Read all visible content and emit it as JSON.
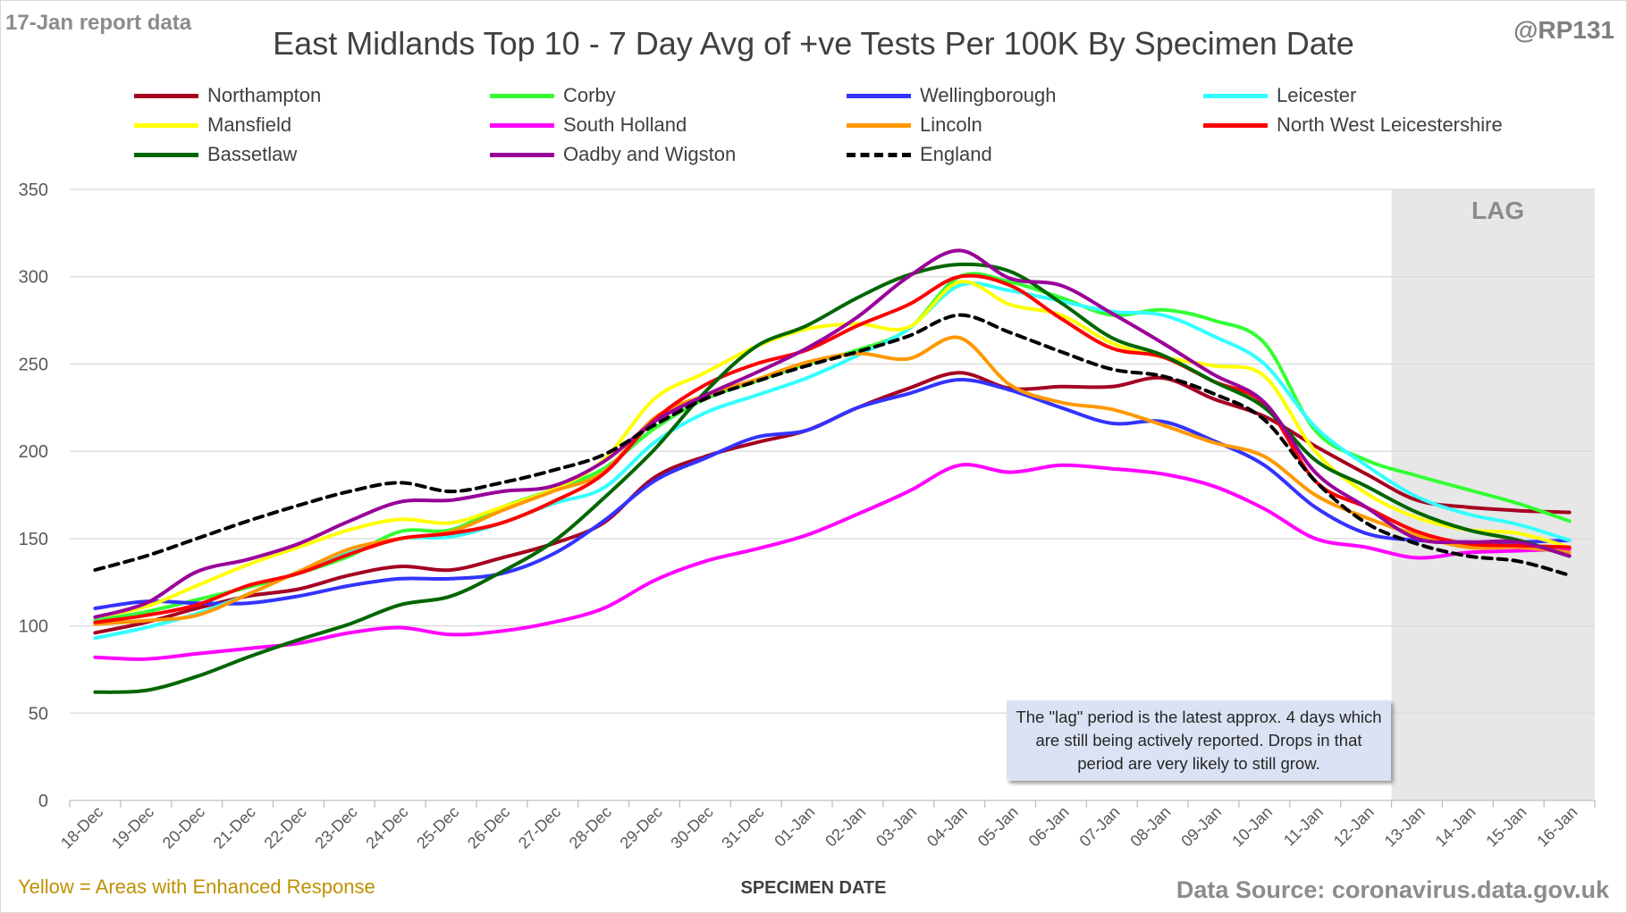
{
  "header": {
    "report_label": "17-Jan report data",
    "handle": "@RP131",
    "title": "East Midlands Top 10 - 7 Day Avg of +ve Tests Per 100K By Specimen Date"
  },
  "footer": {
    "enhanced_note": "Yellow = Areas with Enhanced Response",
    "source": "Data Source: coronavirus.data.gov.uk"
  },
  "lag": {
    "label": "LAG",
    "start_category": "13-Jan",
    "note": "The \"lag\" period is the latest approx. 4 days which are still being actively reported. Drops in that period are very likely to still grow."
  },
  "chart_data": {
    "type": "line",
    "title": "East Midlands Top 10 - 7 Day Avg of +ve Tests Per 100K By Specimen Date",
    "xlabel": "SPECIMEN DATE",
    "ylabel": "",
    "ylim": [
      0,
      350
    ],
    "yticks": [
      0,
      50,
      100,
      150,
      200,
      250,
      300,
      350
    ],
    "grid": true,
    "legend_position": "top",
    "categories": [
      "18-Dec",
      "19-Dec",
      "20-Dec",
      "21-Dec",
      "22-Dec",
      "23-Dec",
      "24-Dec",
      "25-Dec",
      "26-Dec",
      "27-Dec",
      "28-Dec",
      "29-Dec",
      "30-Dec",
      "31-Dec",
      "01-Jan",
      "02-Jan",
      "03-Jan",
      "04-Jan",
      "05-Jan",
      "06-Jan",
      "07-Jan",
      "08-Jan",
      "09-Jan",
      "10-Jan",
      "11-Jan",
      "12-Jan",
      "13-Jan",
      "14-Jan",
      "15-Jan",
      "16-Jan"
    ],
    "series": [
      {
        "name": "Northampton",
        "color": "#a50021",
        "dashed": false,
        "values": [
          96,
          102,
          110,
          117,
          121,
          129,
          134,
          132,
          139,
          147,
          159,
          185,
          197,
          205,
          212,
          225,
          236,
          245,
          236,
          237,
          237,
          242,
          230,
          220,
          203,
          187,
          172,
          168,
          166,
          165
        ]
      },
      {
        "name": "Corby",
        "color": "#33ff33",
        "dashed": false,
        "values": [
          103,
          108,
          115,
          122,
          130,
          140,
          154,
          155,
          168,
          178,
          190,
          213,
          230,
          240,
          250,
          258,
          270,
          300,
          297,
          288,
          278,
          281,
          275,
          262,
          212,
          195,
          186,
          178,
          170,
          160
        ]
      },
      {
        "name": "Wellingborough",
        "color": "#3333ff",
        "dashed": false,
        "values": [
          110,
          114,
          113,
          113,
          117,
          123,
          127,
          127,
          130,
          141,
          160,
          183,
          196,
          208,
          212,
          225,
          233,
          241,
          235,
          225,
          216,
          217,
          206,
          192,
          168,
          153,
          149,
          148,
          148,
          149
        ]
      },
      {
        "name": "Leicester",
        "color": "#33ffff",
        "dashed": false,
        "values": [
          93,
          99,
          107,
          118,
          131,
          142,
          150,
          151,
          159,
          170,
          179,
          205,
          222,
          232,
          242,
          255,
          270,
          295,
          292,
          286,
          280,
          278,
          266,
          250,
          214,
          192,
          174,
          164,
          158,
          149
        ]
      },
      {
        "name": "Mansfield",
        "color": "#ffff00",
        "dashed": false,
        "values": [
          105,
          111,
          123,
          135,
          145,
          155,
          161,
          159,
          168,
          178,
          195,
          230,
          245,
          260,
          270,
          273,
          271,
          297,
          284,
          278,
          262,
          254,
          249,
          243,
          200,
          176,
          162,
          155,
          153,
          145
        ]
      },
      {
        "name": "South Holland",
        "color": "#ff00ff",
        "dashed": false,
        "values": [
          82,
          81,
          84,
          87,
          90,
          96,
          99,
          95,
          97,
          102,
          110,
          126,
          137,
          144,
          152,
          164,
          177,
          192,
          188,
          192,
          190,
          187,
          180,
          167,
          150,
          145,
          139,
          142,
          143,
          144
        ]
      },
      {
        "name": "Lincoln",
        "color": "#ff9900",
        "dashed": false,
        "values": [
          101,
          103,
          106,
          118,
          131,
          144,
          150,
          154,
          166,
          177,
          188,
          219,
          232,
          241,
          251,
          256,
          253,
          265,
          238,
          228,
          224,
          215,
          205,
          197,
          175,
          162,
          152,
          145,
          145,
          142
        ]
      },
      {
        "name": "North West Leicestershire",
        "color": "#ff0000",
        "dashed": false,
        "values": [
          102,
          106,
          112,
          123,
          130,
          141,
          150,
          153,
          159,
          171,
          187,
          218,
          238,
          250,
          258,
          272,
          284,
          300,
          295,
          276,
          259,
          254,
          240,
          227,
          183,
          168,
          154,
          147,
          146,
          145
        ]
      },
      {
        "name": "Bassetlaw",
        "color": "#006600",
        "dashed": false,
        "values": [
          62,
          63,
          71,
          82,
          92,
          101,
          112,
          117,
          131,
          148,
          173,
          201,
          234,
          260,
          272,
          288,
          301,
          307,
          303,
          285,
          265,
          255,
          240,
          225,
          195,
          180,
          165,
          155,
          149,
          140
        ]
      },
      {
        "name": "Oadby and Wigston",
        "color": "#990099",
        "dashed": false,
        "values": [
          105,
          113,
          131,
          138,
          147,
          160,
          171,
          172,
          177,
          180,
          194,
          217,
          232,
          245,
          259,
          277,
          300,
          315,
          299,
          295,
          279,
          262,
          244,
          228,
          188,
          168,
          150,
          148,
          148,
          140
        ]
      },
      {
        "name": "England",
        "color": "#000000",
        "dashed": true,
        "values": [
          132,
          140,
          150,
          160,
          169,
          177,
          182,
          177,
          182,
          189,
          198,
          215,
          230,
          240,
          249,
          257,
          266,
          278,
          268,
          257,
          247,
          243,
          233,
          218,
          183,
          159,
          147,
          140,
          137,
          129
        ]
      }
    ]
  }
}
